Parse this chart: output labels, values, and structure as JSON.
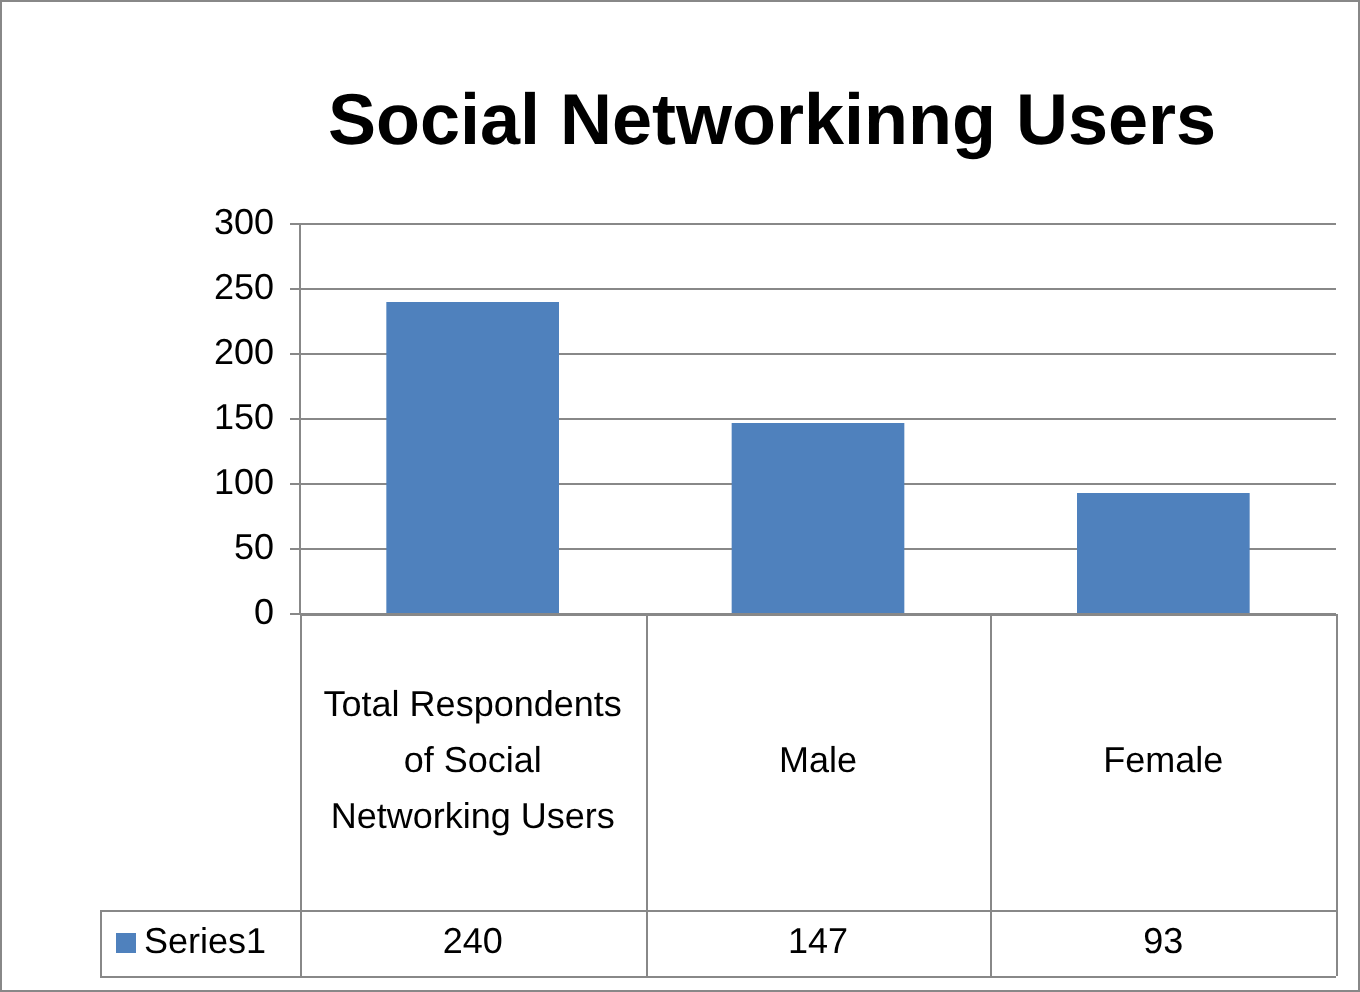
{
  "chart_data": {
    "type": "bar",
    "title": "Social Networkinng Users",
    "categories": [
      "Total Respondents of Social Networking Users",
      "Male",
      "Female"
    ],
    "series": [
      {
        "name": "Series1",
        "color": "#4f81bd",
        "values": [
          240,
          147,
          93
        ]
      }
    ],
    "ylim": [
      0,
      300
    ],
    "yticks": [
      0,
      50,
      100,
      150,
      200,
      250,
      300
    ],
    "grid": "y",
    "legend": "bottom",
    "data_labels": true
  }
}
